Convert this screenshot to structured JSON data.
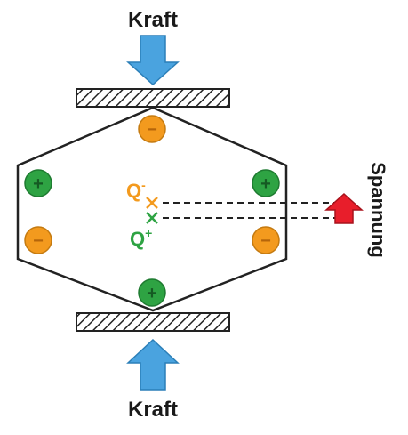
{
  "labels": {
    "force_top": "Kraft",
    "force_bottom": "Kraft",
    "voltage": "Spannung",
    "q_minus": "Q",
    "q_minus_sup": "-",
    "q_plus": "Q",
    "q_plus_sup": "+"
  },
  "charges": {
    "positive_symbol": "+",
    "negative_symbol": "−",
    "positive_color": "#2ea343",
    "negative_color": "#f39a1e"
  },
  "colors": {
    "force_arrow": "#4aa3df",
    "voltage_arrow": "#e81e2b",
    "q_minus_color": "#f39a1e",
    "q_plus_color": "#2ea343",
    "outline": "#222222"
  }
}
